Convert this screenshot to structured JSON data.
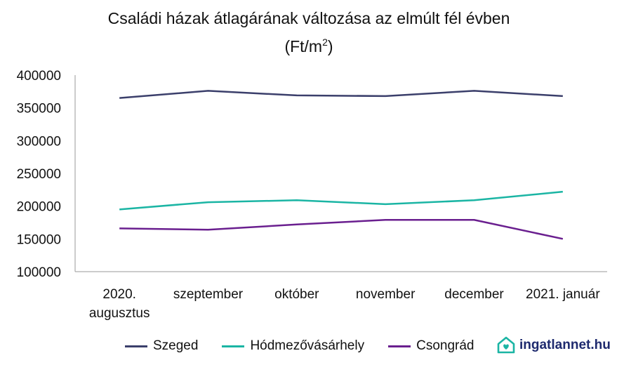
{
  "chart_data": {
    "type": "line",
    "title": "Családi házak átlagárának változása az elmúlt fél évben",
    "subtitle_prefix": "(Ft/m",
    "subtitle_sup": "2",
    "subtitle_suffix": ")",
    "categories": [
      [
        "2020.",
        "augusztus"
      ],
      [
        "szeptember"
      ],
      [
        "október"
      ],
      [
        "november"
      ],
      [
        "december"
      ],
      [
        "2021. január"
      ]
    ],
    "yticks": [
      "400000",
      "350000",
      "300000",
      "250000",
      "200000",
      "150000",
      "100000"
    ],
    "ylim": [
      100000,
      400000
    ],
    "grid": false,
    "legend_position": "bottom",
    "series": [
      {
        "name": "Szeged",
        "color": "#3b3f6b",
        "values": [
          365000,
          376000,
          369000,
          368000,
          376000,
          368000
        ]
      },
      {
        "name": "Hódmezővásárhely",
        "color": "#1bb5a4",
        "values": [
          195000,
          206000,
          209000,
          203000,
          209000,
          222000
        ]
      },
      {
        "name": "Csongrád",
        "color": "#6a1f8f",
        "values": [
          166000,
          164000,
          172000,
          179000,
          179000,
          150000
        ]
      }
    ]
  },
  "brand": {
    "name": "ingatlannet",
    "tld": ".hu",
    "icon": "house-heart-icon",
    "color": "#1e2a6e",
    "accent": "#1bb5a4"
  }
}
